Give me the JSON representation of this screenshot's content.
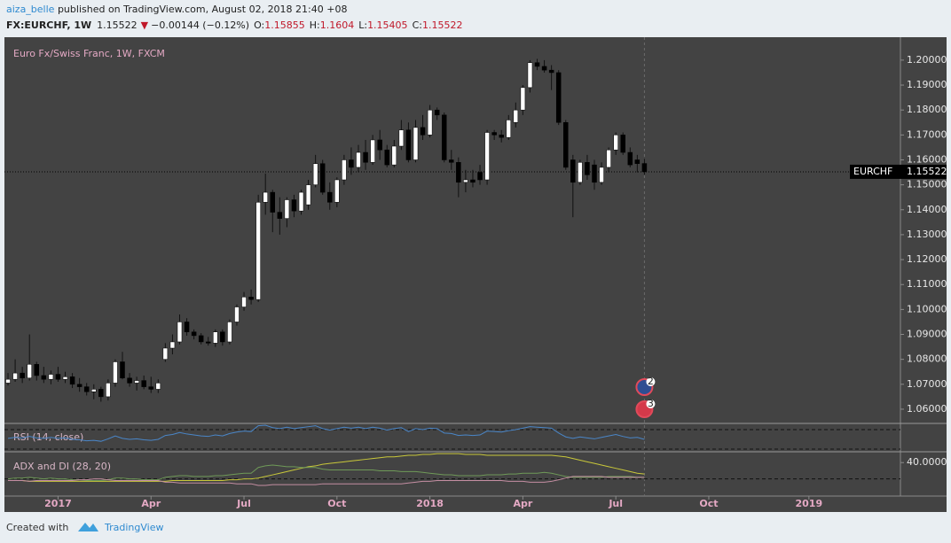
{
  "header": {
    "author": "aiza_belle",
    "published": " published on TradingView.com, August 02, 2018 21:40 +08",
    "symbol": "FX:EURCHF, 1W",
    "arrow": "▼",
    "change": "−0.00144 (−0.12%)",
    "o": "O:",
    "h": "H:",
    "l": "L:",
    "c": "C:"
  },
  "footer": {
    "created": "Created with",
    "brand": "TradingView"
  },
  "chart_data": [
    {
      "type": "candlestick",
      "title": "Euro Fx/Swiss Franc, 1W, FXCM",
      "tag": "EURCHF",
      "colors": {
        "up": "#ffffff",
        "down": "#000000",
        "wick": "#111111"
      },
      "open": [
        1.0705,
        1.072,
        1.0745,
        1.0725,
        1.078,
        1.0735,
        1.072,
        1.074,
        1.072,
        1.073,
        1.07,
        1.069,
        1.067,
        1.068,
        1.065,
        1.0705,
        1.079,
        1.0725,
        1.0705,
        1.0715,
        1.069,
        1.068,
        1.08,
        1.0845,
        1.087,
        1.095,
        1.091,
        1.0895,
        1.087,
        1.0865,
        1.091,
        1.087,
        1.095,
        1.101,
        1.105,
        1.104,
        1.143,
        1.147,
        1.139,
        1.1365,
        1.144,
        1.1395,
        1.142,
        1.15,
        1.1585,
        1.147,
        1.143,
        1.152,
        1.16,
        1.157,
        1.163,
        1.159,
        1.168,
        1.164,
        1.158,
        1.1655,
        1.172,
        1.16,
        1.173,
        1.17,
        1.18,
        1.178,
        1.16,
        1.159,
        1.151,
        1.152,
        1.155,
        1.152,
        1.171,
        1.17,
        1.169,
        1.175,
        1.18,
        1.189,
        1.199,
        1.1975,
        1.196,
        1.195,
        1.175,
        1.16,
        1.151,
        1.159,
        1.158,
        1.151,
        1.157,
        1.164,
        1.17,
        1.163,
        1.16,
        1.15855
      ],
      "high": [
        1.0745,
        1.08,
        1.077,
        1.09,
        1.079,
        1.077,
        1.0755,
        1.077,
        1.075,
        1.0745,
        1.0725,
        1.0705,
        1.07,
        1.069,
        1.072,
        1.08,
        1.083,
        1.0745,
        1.073,
        1.0735,
        1.073,
        1.072,
        1.0865,
        1.09,
        1.098,
        1.0965,
        1.092,
        1.0905,
        1.089,
        1.092,
        1.092,
        1.096,
        1.102,
        1.107,
        1.108,
        1.146,
        1.1545,
        1.148,
        1.145,
        1.145,
        1.146,
        1.148,
        1.152,
        1.162,
        1.16,
        1.151,
        1.153,
        1.162,
        1.165,
        1.166,
        1.168,
        1.17,
        1.172,
        1.166,
        1.168,
        1.176,
        1.175,
        1.176,
        1.178,
        1.182,
        1.181,
        1.179,
        1.164,
        1.161,
        1.156,
        1.156,
        1.158,
        1.172,
        1.172,
        1.172,
        1.178,
        1.183,
        1.19,
        1.2,
        1.2005,
        1.2,
        1.198,
        1.196,
        1.176,
        1.162,
        1.16,
        1.162,
        1.16,
        1.159,
        1.165,
        1.171,
        1.171,
        1.165,
        1.162,
        1.1604
      ],
      "low": [
        1.0695,
        1.071,
        1.0705,
        1.0715,
        1.0715,
        1.0705,
        1.07,
        1.071,
        1.0705,
        1.0685,
        1.067,
        1.0655,
        1.064,
        1.063,
        1.0635,
        1.069,
        1.072,
        1.069,
        1.0675,
        1.068,
        1.0665,
        1.0665,
        1.079,
        1.082,
        1.086,
        1.0895,
        1.088,
        1.086,
        1.0855,
        1.085,
        1.0855,
        1.086,
        1.0935,
        1.0995,
        1.102,
        1.103,
        1.138,
        1.131,
        1.13,
        1.133,
        1.137,
        1.138,
        1.14,
        1.149,
        1.146,
        1.14,
        1.141,
        1.15,
        1.154,
        1.155,
        1.156,
        1.158,
        1.16,
        1.157,
        1.157,
        1.164,
        1.159,
        1.159,
        1.168,
        1.169,
        1.176,
        1.159,
        1.156,
        1.145,
        1.147,
        1.149,
        1.15,
        1.15,
        1.168,
        1.167,
        1.168,
        1.173,
        1.178,
        1.187,
        1.196,
        1.195,
        1.188,
        1.174,
        1.156,
        1.137,
        1.15,
        1.152,
        1.148,
        1.15,
        1.155,
        1.162,
        1.162,
        1.157,
        1.155,
        1.15405
      ],
      "close": [
        1.072,
        1.0745,
        1.0725,
        1.078,
        1.0735,
        1.072,
        1.074,
        1.072,
        1.073,
        1.07,
        1.069,
        1.067,
        1.068,
        1.065,
        1.0705,
        1.079,
        1.0725,
        1.0705,
        1.0715,
        1.069,
        1.068,
        1.0705,
        1.0845,
        1.087,
        1.095,
        1.091,
        1.0895,
        1.087,
        1.0865,
        1.091,
        1.087,
        1.095,
        1.101,
        1.105,
        1.104,
        1.143,
        1.147,
        1.139,
        1.1365,
        1.144,
        1.1395,
        1.147,
        1.15,
        1.1585,
        1.147,
        1.143,
        1.152,
        1.16,
        1.157,
        1.163,
        1.159,
        1.168,
        1.164,
        1.158,
        1.1655,
        1.172,
        1.16,
        1.173,
        1.17,
        1.18,
        1.178,
        1.16,
        1.159,
        1.151,
        1.152,
        1.151,
        1.152,
        1.171,
        1.17,
        1.169,
        1.176,
        1.18,
        1.189,
        1.199,
        1.1975,
        1.196,
        1.195,
        1.175,
        1.157,
        1.151,
        1.159,
        1.154,
        1.151,
        1.157,
        1.164,
        1.17,
        1.163,
        1.158,
        1.1585,
        1.15522
      ],
      "xlim": [
        -0.5,
        124.8
      ],
      "xticks": [
        {
          "value": 7,
          "label": "2017"
        },
        {
          "value": 20,
          "label": "Apr"
        },
        {
          "value": 33,
          "label": "Jul"
        },
        {
          "value": 46,
          "label": "Oct"
        },
        {
          "value": 59,
          "label": "2018"
        },
        {
          "value": 72,
          "label": "Apr"
        },
        {
          "value": 85,
          "label": "Jul"
        },
        {
          "value": 98,
          "label": "Oct"
        },
        {
          "value": 112,
          "label": "2019"
        }
      ],
      "ylim": [
        1.0543,
        1.2092
      ],
      "yticks": [
        {
          "value": 1.06,
          "label": "1.06000"
        },
        {
          "value": 1.07,
          "label": "1.07000"
        },
        {
          "value": 1.08,
          "label": "1.08000"
        },
        {
          "value": 1.09,
          "label": "1.09000"
        },
        {
          "value": 1.1,
          "label": "1.10000"
        },
        {
          "value": 1.11,
          "label": "1.11000"
        },
        {
          "value": 1.12,
          "label": "1.12000"
        },
        {
          "value": 1.13,
          "label": "1.13000"
        },
        {
          "value": 1.14,
          "label": "1.14000"
        },
        {
          "value": 1.15,
          "label": "1.15000"
        },
        {
          "value": 1.16,
          "label": "1.16000"
        },
        {
          "value": 1.17,
          "label": "1.17000"
        },
        {
          "value": 1.18,
          "label": "1.18000"
        },
        {
          "value": 1.19,
          "label": "1.19000"
        },
        {
          "value": 1.2,
          "label": "1.20000"
        }
      ],
      "events": [
        {
          "label": "2"
        },
        {
          "label": "3"
        }
      ]
    },
    {
      "type": "line",
      "title": "RSI (14, close)",
      "ylim": [
        24.5,
        82.7
      ],
      "levels": [
        70,
        30
      ],
      "series": [
        {
          "color": "#4a86c8",
          "values": [
            52,
            54,
            53,
            56,
            53,
            52,
            54,
            52,
            53,
            50,
            49,
            47,
            48,
            46,
            51,
            57,
            52,
            50,
            51,
            49,
            48,
            50,
            58,
            60,
            64,
            61,
            59,
            57,
            56,
            59,
            57,
            62,
            65,
            67,
            66,
            78,
            79,
            74,
            72,
            75,
            72,
            74,
            76,
            78,
            72,
            69,
            72,
            75,
            73,
            75,
            72,
            75,
            73,
            69,
            72,
            74,
            66,
            72,
            70,
            73,
            72,
            63,
            62,
            58,
            59,
            58,
            59,
            67,
            66,
            65,
            68,
            70,
            73,
            76,
            75,
            74,
            73,
            63,
            55,
            52,
            55,
            53,
            51,
            54,
            57,
            60,
            56,
            53,
            54,
            50
          ]
        }
      ]
    },
    {
      "type": "line",
      "title": "ADX and DI (28, 20)",
      "ylim": [
        -1,
        53.3
      ],
      "levels": [
        20
      ],
      "yticks": [
        {
          "value": 40,
          "label": "40.0000"
        }
      ],
      "series": [
        {
          "color": "#c9c83a",
          "values": [
            18,
            18,
            18,
            17,
            17,
            17,
            17,
            17,
            17,
            17,
            17,
            17,
            17,
            17,
            17,
            17,
            17,
            17,
            17,
            17,
            17,
            17,
            17,
            18,
            18,
            18,
            18,
            18,
            18,
            18,
            18,
            19,
            19,
            20,
            20,
            21,
            23,
            25,
            27,
            29,
            31,
            33,
            35,
            36,
            38,
            39,
            40,
            41,
            42,
            43,
            44,
            45,
            46,
            47,
            47,
            48,
            49,
            49,
            50,
            50,
            51,
            51,
            51,
            51,
            50,
            50,
            50,
            49,
            49,
            49,
            49,
            49,
            49,
            49,
            49,
            49,
            49,
            48,
            47,
            45,
            43,
            41,
            39,
            37,
            35,
            33,
            31,
            29,
            27,
            26
          ]
        },
        {
          "color": "#6f9a58",
          "values": [
            20,
            21,
            21,
            22,
            21,
            20,
            21,
            20,
            20,
            19,
            19,
            18,
            18,
            18,
            19,
            21,
            21,
            20,
            20,
            19,
            19,
            19,
            22,
            23,
            24,
            24,
            23,
            23,
            23,
            24,
            24,
            25,
            26,
            27,
            27,
            34,
            36,
            37,
            36,
            35,
            35,
            34,
            34,
            34,
            32,
            31,
            31,
            31,
            31,
            31,
            31,
            31,
            30,
            30,
            30,
            29,
            29,
            29,
            28,
            27,
            26,
            25,
            25,
            24,
            24,
            24,
            24,
            25,
            25,
            25,
            26,
            26,
            27,
            27,
            27,
            28,
            27,
            25,
            23,
            22,
            22,
            22,
            22,
            22,
            23,
            23,
            23,
            23,
            22,
            22
          ]
        },
        {
          "color": "#c48ea2",
          "values": [
            18,
            18,
            18,
            17,
            18,
            18,
            18,
            18,
            18,
            18,
            19,
            19,
            20,
            20,
            19,
            18,
            18,
            18,
            18,
            18,
            18,
            18,
            16,
            16,
            15,
            15,
            15,
            15,
            15,
            15,
            15,
            15,
            14,
            14,
            14,
            12,
            12,
            13,
            13,
            13,
            13,
            13,
            13,
            13,
            14,
            14,
            14,
            14,
            14,
            14,
            14,
            14,
            14,
            14,
            14,
            14,
            15,
            16,
            17,
            17,
            18,
            18,
            18,
            18,
            18,
            18,
            18,
            18,
            18,
            18,
            17,
            17,
            17,
            16,
            16,
            16,
            17,
            19,
            21,
            23,
            23,
            23,
            23,
            23,
            22,
            22,
            22,
            22,
            22,
            22
          ]
        }
      ]
    }
  ]
}
